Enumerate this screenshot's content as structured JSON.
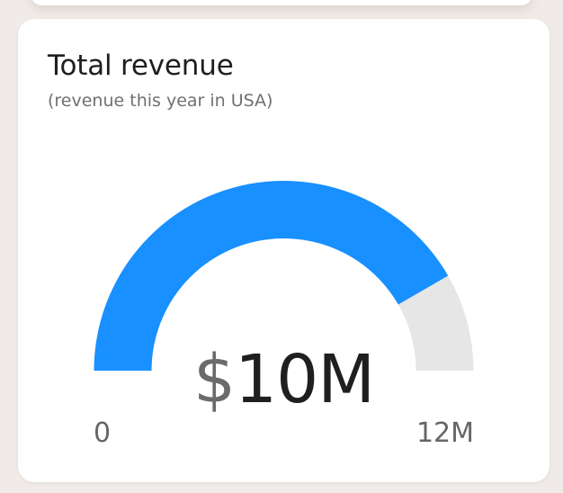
{
  "card": {
    "title": "Total revenue",
    "subtitle": "(revenue this year in USA)"
  },
  "chart_data": {
    "type": "gauge",
    "value": 10,
    "min": 0,
    "max": 12,
    "currency": "$",
    "value_display": "10M",
    "min_label": "0",
    "max_label": "12M",
    "colors": {
      "fill": "#1890ff",
      "track": "#e6e6e6"
    }
  }
}
